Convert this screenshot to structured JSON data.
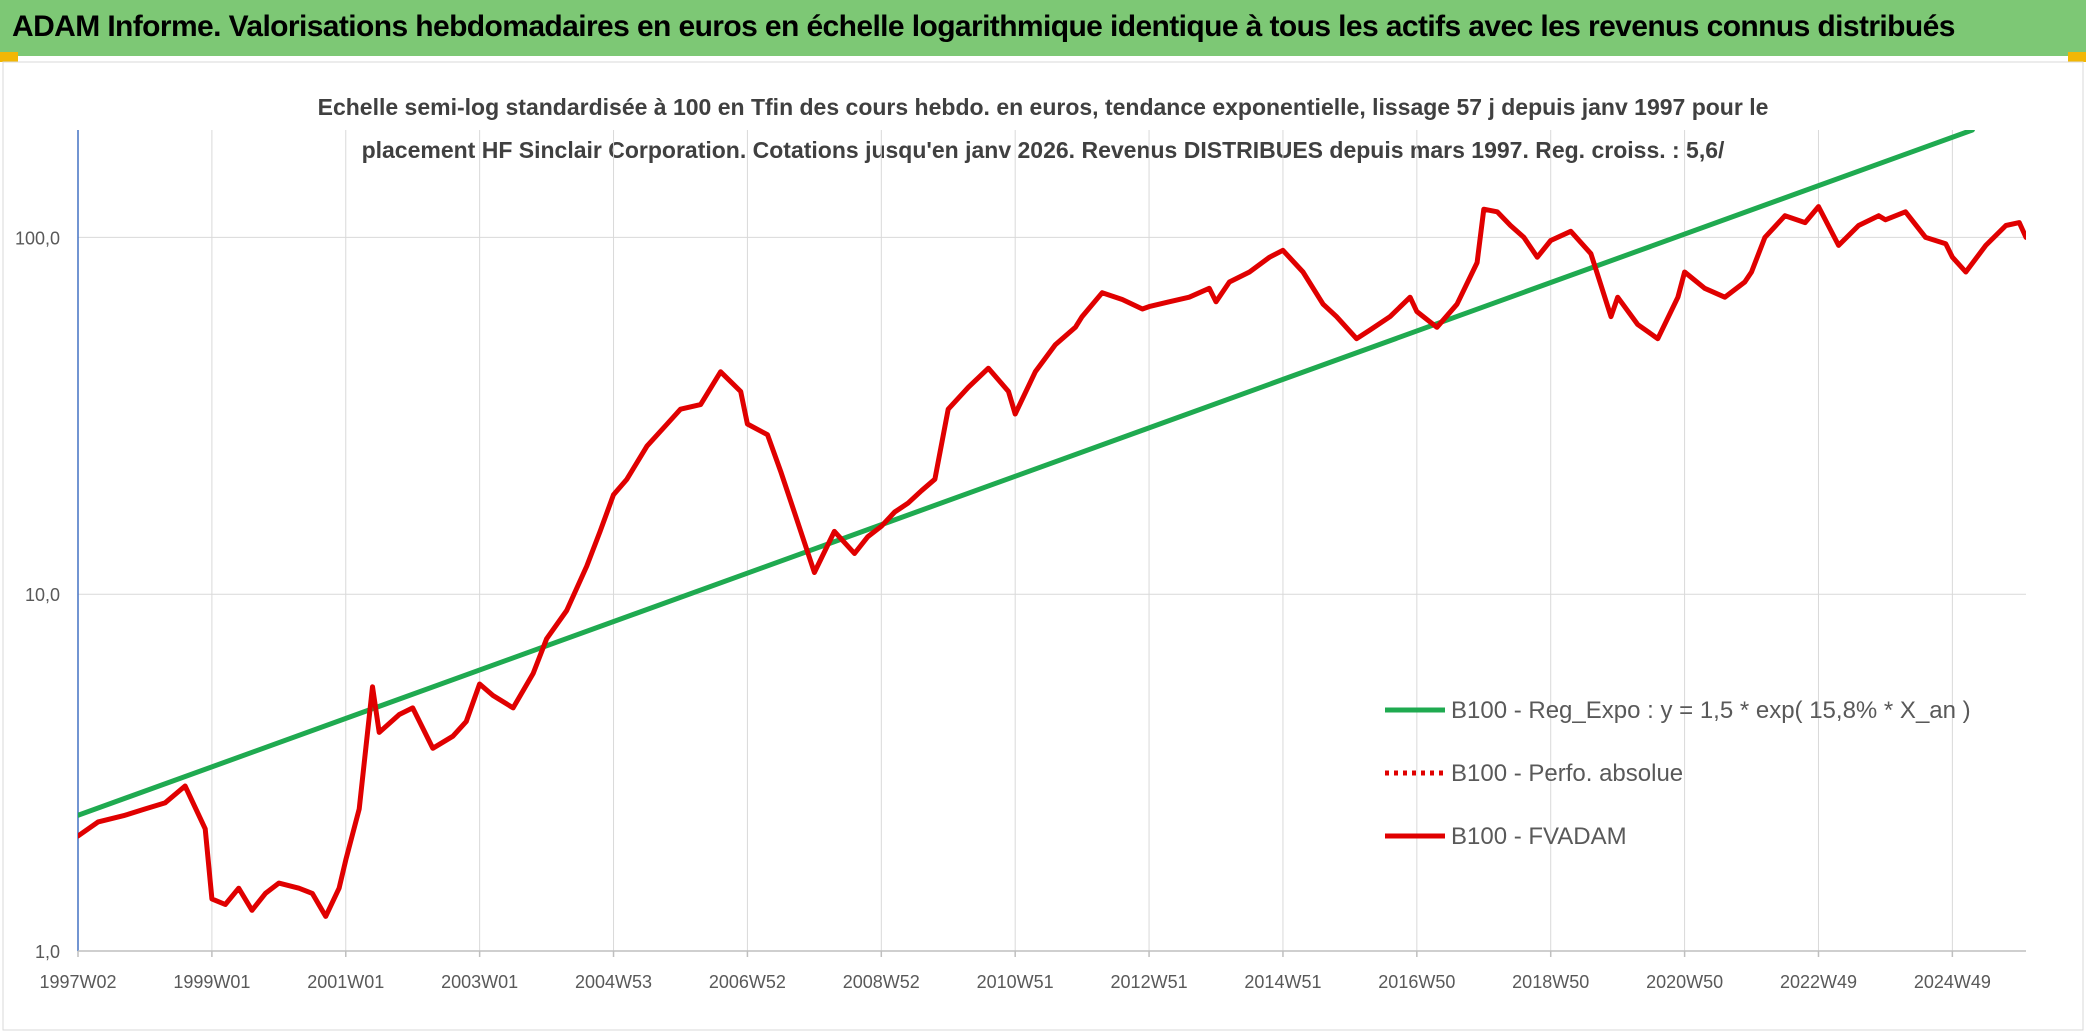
{
  "header": {
    "title": "ADAM Informe. Valorisations hebdomadaires en euros en échelle logarithmique identique à tous les actifs avec les revenus connus distribués"
  },
  "chart_data": {
    "type": "line",
    "title_line1": "Echelle semi-log standardisée à 100 en Tfin des cours hebdo. en euros, tendance exponentielle, lissage 57 j depuis janv 1997 pour le",
    "title_line2": "placement HF Sinclair Corporation. Cotations jusqu'en janv 2026. Revenus DISTRIBUES depuis mars 1997. Reg. croiss. : 5,6/",
    "yscale": "log",
    "ylim": [
      1,
      200
    ],
    "yticks": [
      {
        "value": 1,
        "label": "1,0"
      },
      {
        "value": 10,
        "label": "10,0"
      },
      {
        "value": 100,
        "label": "100,0"
      }
    ],
    "xlim": [
      1997.0,
      2026.1
    ],
    "xticks": [
      {
        "value": 1997.0,
        "label": "1997W02"
      },
      {
        "value": 1999.0,
        "label": "1999W01"
      },
      {
        "value": 2001.0,
        "label": "2001W01"
      },
      {
        "value": 2003.0,
        "label": "2003W01"
      },
      {
        "value": 2005.0,
        "label": "2004W53"
      },
      {
        "value": 2007.0,
        "label": "2006W52"
      },
      {
        "value": 2009.0,
        "label": "2008W52"
      },
      {
        "value": 2011.0,
        "label": "2010W51"
      },
      {
        "value": 2013.0,
        "label": "2012W51"
      },
      {
        "value": 2015.0,
        "label": "2014W51"
      },
      {
        "value": 2017.0,
        "label": "2016W50"
      },
      {
        "value": 2019.0,
        "label": "2018W50"
      },
      {
        "value": 2021.0,
        "label": "2020W50"
      },
      {
        "value": 2023.0,
        "label": "2022W49"
      },
      {
        "value": 2025.0,
        "label": "2024W49"
      }
    ],
    "legend_position": "bottom-right",
    "series": [
      {
        "name": "B100 - Reg_Expo : y = 1,5 * exp( 15,8% *  X_an )",
        "color": "#1faa50",
        "style": "solid",
        "x": [
          1997.0,
          2025.3
        ],
        "y": [
          2.4,
          200
        ]
      },
      {
        "name": "B100 - Perfo. absolue",
        "color": "#e00000",
        "style": "dotted",
        "x": [],
        "y": []
      },
      {
        "name": "B100 - FVADAM",
        "color": "#e00000",
        "style": "solid",
        "x": [
          1997.0,
          1997.3,
          1997.7,
          1998.0,
          1998.3,
          1998.6,
          1998.9,
          1999.0,
          1999.2,
          1999.4,
          1999.6,
          1999.8,
          2000.0,
          2000.3,
          2000.5,
          2000.7,
          2000.9,
          2001.0,
          2001.2,
          2001.4,
          2001.5,
          2001.8,
          2002.0,
          2002.3,
          2002.6,
          2002.8,
          2003.0,
          2003.2,
          2003.5,
          2003.8,
          2004.0,
          2004.3,
          2004.6,
          2004.8,
          2005.0,
          2005.2,
          2005.5,
          2005.8,
          2006.0,
          2006.3,
          2006.6,
          2006.9,
          2007.0,
          2007.3,
          2007.5,
          2007.7,
          2008.0,
          2008.3,
          2008.6,
          2008.8,
          2009.0,
          2009.2,
          2009.4,
          2009.6,
          2009.8,
          2010.0,
          2010.3,
          2010.6,
          2010.9,
          2011.0,
          2011.3,
          2011.6,
          2011.9,
          2012.0,
          2012.3,
          2012.6,
          2012.9,
          2013.0,
          2013.3,
          2013.6,
          2013.9,
          2014.0,
          2014.2,
          2014.5,
          2014.8,
          2015.0,
          2015.3,
          2015.6,
          2015.8,
          2016.1,
          2016.3,
          2016.6,
          2016.9,
          2017.0,
          2017.3,
          2017.6,
          2017.9,
          2018.0,
          2018.2,
          2018.4,
          2018.6,
          2018.8,
          2019.0,
          2019.3,
          2019.6,
          2019.9,
          2020.0,
          2020.3,
          2020.6,
          2020.9,
          2021.0,
          2021.3,
          2021.6,
          2021.9,
          2022.0,
          2022.2,
          2022.5,
          2022.8,
          2023.0,
          2023.3,
          2023.6,
          2023.9,
          2024.0,
          2024.3,
          2024.6,
          2024.9,
          2025.0,
          2025.2,
          2025.5,
          2025.8,
          2026.0,
          2026.1
        ],
        "y": [
          2.1,
          2.3,
          2.4,
          2.5,
          2.6,
          2.9,
          2.2,
          1.4,
          1.35,
          1.5,
          1.3,
          1.45,
          1.55,
          1.5,
          1.45,
          1.25,
          1.5,
          1.8,
          2.5,
          5.5,
          4.1,
          4.6,
          4.8,
          3.7,
          4.0,
          4.4,
          5.6,
          5.2,
          4.8,
          6.0,
          7.5,
          9.0,
          12.0,
          15.0,
          19.0,
          21.0,
          26.0,
          30.0,
          33.0,
          34.0,
          42.0,
          37.0,
          30.0,
          28.0,
          22.0,
          17.0,
          11.5,
          15.0,
          13.0,
          14.5,
          15.5,
          17.0,
          18.0,
          19.5,
          21.0,
          33.0,
          38.0,
          43.0,
          37.0,
          32.0,
          42.0,
          50.0,
          56.0,
          60.0,
          70.0,
          67.0,
          63.0,
          64.0,
          66.0,
          68.0,
          72.0,
          66.0,
          75.0,
          80.0,
          88.0,
          92.0,
          80.0,
          65.0,
          60.0,
          52.0,
          55.0,
          60.0,
          68.0,
          62.0,
          56.0,
          65.0,
          85.0,
          120.0,
          118.0,
          108.0,
          100.0,
          88.0,
          98.0,
          104.0,
          90.0,
          60.0,
          68.0,
          57.0,
          52.0,
          68.0,
          80.0,
          72.0,
          68.0,
          75.0,
          80.0,
          100.0,
          115.0,
          110.0,
          122.0,
          95.0,
          108.0,
          115.0,
          112.0,
          118.0,
          100.0,
          96.0,
          88.0,
          80.0,
          95.0,
          108.0,
          110.0,
          100.0
        ]
      }
    ]
  }
}
